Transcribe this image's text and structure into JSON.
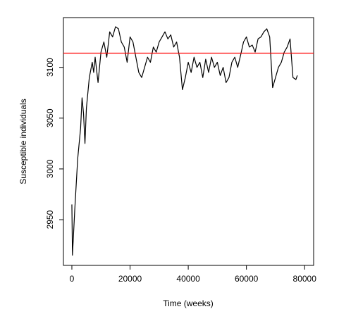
{
  "chart_data": {
    "type": "line",
    "x_label": "Time (weeks)",
    "y_label": "Susceptible individuals",
    "x": [
      0,
      200,
      1000,
      2000,
      3000,
      3500,
      4000,
      4500,
      5000,
      6000,
      7000,
      7500,
      8000,
      9000,
      10000,
      11000,
      12000,
      13000,
      14000,
      15000,
      16000,
      17000,
      18000,
      19000,
      20000,
      21000,
      22000,
      23000,
      24000,
      25000,
      26000,
      27000,
      28000,
      29000,
      30000,
      31000,
      32000,
      33000,
      34000,
      35000,
      36000,
      37000,
      38000,
      39000,
      40000,
      41000,
      42000,
      43000,
      44000,
      45000,
      46000,
      47000,
      48000,
      49000,
      50000,
      51000,
      52000,
      53000,
      54000,
      55000,
      56000,
      57000,
      58000,
      59000,
      60000,
      61000,
      62000,
      63000,
      64000,
      65000,
      66000,
      67000,
      68000,
      69000,
      70000,
      71000,
      72000,
      73000,
      74000,
      75000,
      76000,
      77000,
      77500
    ],
    "series": [
      {
        "name": "Susceptible individuals",
        "color": "#000000",
        "values": [
          2965,
          2915,
          2960,
          3010,
          3040,
          3070,
          3055,
          3025,
          3060,
          3090,
          3105,
          3095,
          3110,
          3085,
          3115,
          3125,
          3110,
          3135,
          3130,
          3140,
          3138,
          3125,
          3120,
          3105,
          3130,
          3125,
          3110,
          3095,
          3090,
          3100,
          3110,
          3105,
          3120,
          3115,
          3125,
          3130,
          3135,
          3128,
          3132,
          3120,
          3125,
          3110,
          3078,
          3090,
          3105,
          3095,
          3110,
          3100,
          3105,
          3090,
          3108,
          3095,
          3110,
          3100,
          3105,
          3092,
          3100,
          3085,
          3090,
          3105,
          3110,
          3100,
          3112,
          3125,
          3130,
          3120,
          3122,
          3115,
          3128,
          3130,
          3135,
          3138,
          3130,
          3080,
          3090,
          3100,
          3105,
          3115,
          3120,
          3128,
          3090,
          3088,
          3092
        ]
      }
    ],
    "reference_line": {
      "value": 3114,
      "color": "#ff0000"
    },
    "xlim": [
      -2900,
      83100
    ],
    "ylim": [
      2905,
      3149
    ],
    "xticks": [
      0,
      20000,
      40000,
      60000,
      80000
    ],
    "yticks": [
      2950,
      3000,
      3050,
      3100
    ]
  }
}
